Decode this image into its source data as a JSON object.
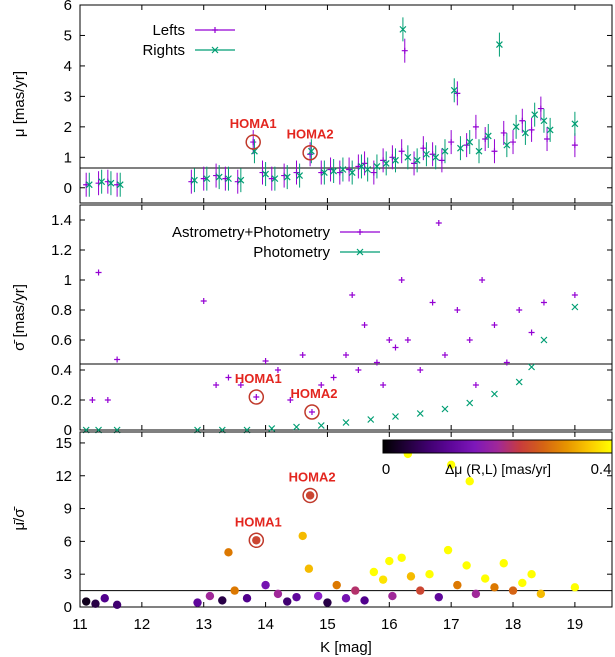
{
  "chart_data": [
    {
      "type": "scatter",
      "panel": "top",
      "ylabel": "μ [mas/yr]",
      "xlim": [
        11,
        19.6
      ],
      "ylim": [
        -0.5,
        6
      ],
      "yticks": [
        0,
        1,
        2,
        3,
        4,
        5,
        6
      ],
      "legend_position": "top-left",
      "series": [
        {
          "name": "Lefts",
          "color": "#9400d3",
          "marker": "plus",
          "x": [
            11.1,
            11.3,
            11.45,
            11.6,
            12.8,
            13.0,
            13.2,
            13.35,
            13.55,
            13.8,
            13.95,
            14.1,
            14.3,
            14.5,
            14.72,
            14.9,
            15.05,
            15.2,
            15.35,
            15.5,
            15.6,
            15.75,
            15.9,
            16.05,
            16.2,
            16.25,
            16.4,
            16.55,
            16.7,
            16.85,
            17.0,
            17.1,
            17.25,
            17.4,
            17.55,
            17.7,
            17.85,
            18.0,
            18.15,
            18.3,
            18.45,
            18.55,
            19.0
          ],
          "y": [
            0.1,
            0.15,
            0.2,
            0.1,
            0.2,
            0.3,
            0.4,
            0.3,
            0.2,
            1.5,
            0.5,
            0.3,
            0.4,
            0.5,
            1.1,
            0.5,
            0.6,
            0.5,
            0.6,
            0.7,
            0.8,
            0.5,
            0.9,
            1.0,
            1.2,
            4.5,
            0.8,
            1.3,
            1.1,
            0.9,
            1.5,
            3.1,
            1.4,
            2.0,
            1.6,
            1.2,
            1.8,
            1.5,
            2.2,
            1.9,
            2.6,
            1.6,
            1.4
          ]
        },
        {
          "name": "Rights",
          "color": "#009e73",
          "marker": "cross",
          "x": [
            11.15,
            11.35,
            11.5,
            11.65,
            12.85,
            13.05,
            13.25,
            13.4,
            13.6,
            13.82,
            14.0,
            14.15,
            14.35,
            14.55,
            14.74,
            14.95,
            15.1,
            15.25,
            15.4,
            15.55,
            15.65,
            15.8,
            15.95,
            16.1,
            16.22,
            16.3,
            16.45,
            16.6,
            16.75,
            16.9,
            17.05,
            17.15,
            17.3,
            17.45,
            17.6,
            17.78,
            17.9,
            18.05,
            18.2,
            18.35,
            18.5,
            18.6,
            19.0
          ],
          "y": [
            0.1,
            0.2,
            0.15,
            0.1,
            0.25,
            0.3,
            0.35,
            0.3,
            0.25,
            1.2,
            0.45,
            0.3,
            0.35,
            0.4,
            1.2,
            0.5,
            0.55,
            0.6,
            0.5,
            0.7,
            0.6,
            0.7,
            0.8,
            0.9,
            5.2,
            1.0,
            0.9,
            1.1,
            1.0,
            1.2,
            3.2,
            1.3,
            1.5,
            1.2,
            1.7,
            4.7,
            1.4,
            2.0,
            1.8,
            2.4,
            2.2,
            1.9,
            2.1
          ]
        }
      ],
      "hline": 0.65,
      "annotations": [
        {
          "text": "HOMA1",
          "x": 13.8,
          "y": 1.5
        },
        {
          "text": "HOMA2",
          "x": 14.72,
          "y": 1.15
        }
      ]
    },
    {
      "type": "scatter",
      "panel": "middle",
      "ylabel": "σ̄ [mas/yr]",
      "xlim": [
        11,
        19.6
      ],
      "ylim": [
        0,
        1.5
      ],
      "yticks": [
        0,
        0.2,
        0.4,
        0.6,
        0.8,
        1,
        1.2,
        1.4
      ],
      "legend_position": "top-left",
      "series": [
        {
          "name": "Astrometry+Photometry",
          "color": "#9400d3",
          "marker": "plus",
          "x": [
            11.2,
            11.3,
            11.45,
            11.6,
            13.0,
            13.2,
            13.4,
            13.6,
            13.85,
            14.0,
            14.2,
            14.4,
            14.6,
            14.75,
            14.9,
            15.1,
            15.3,
            15.5,
            15.6,
            15.8,
            15.9,
            16.1,
            16.3,
            16.5,
            16.7,
            16.9,
            17.1,
            17.3,
            17.5,
            17.7,
            17.9,
            18.1,
            18.3,
            18.5,
            19.0,
            16.2,
            16.8,
            17.4,
            15.4,
            16.0
          ],
          "y": [
            0.2,
            1.05,
            0.2,
            0.47,
            0.86,
            0.3,
            0.35,
            0.3,
            0.22,
            0.46,
            0.4,
            0.2,
            0.5,
            0.12,
            0.3,
            0.35,
            0.5,
            0.4,
            0.7,
            0.45,
            0.3,
            0.55,
            0.6,
            0.4,
            0.85,
            0.5,
            0.8,
            0.6,
            1.0,
            0.7,
            0.45,
            0.8,
            0.65,
            0.85,
            0.9,
            1.0,
            1.38,
            0.3,
            0.9,
            0.6
          ]
        },
        {
          "name": "Photometry",
          "color": "#009e73",
          "marker": "cross",
          "x": [
            11.1,
            11.3,
            11.6,
            12.9,
            13.3,
            13.7,
            14.1,
            14.5,
            14.9,
            15.3,
            15.7,
            16.1,
            16.5,
            16.9,
            17.3,
            17.7,
            18.1,
            18.3,
            18.5,
            19.0
          ],
          "y": [
            0.0,
            0.0,
            0.0,
            0.0,
            0.0,
            0.0,
            0.01,
            0.02,
            0.03,
            0.05,
            0.07,
            0.09,
            0.11,
            0.14,
            0.18,
            0.24,
            0.32,
            0.42,
            0.6,
            0.82
          ]
        }
      ],
      "hline": 0.44,
      "annotations": [
        {
          "text": "HOMA1",
          "x": 13.85,
          "y": 0.22
        },
        {
          "text": "HOMA2",
          "x": 14.75,
          "y": 0.12
        }
      ]
    },
    {
      "type": "scatter",
      "panel": "bottom",
      "ylabel": "μ̄/σ̄",
      "xlabel": "K [mag]",
      "xlim": [
        11,
        19.6
      ],
      "ylim": [
        0,
        16
      ],
      "xticks": [
        11,
        12,
        13,
        14,
        15,
        16,
        17,
        18,
        19
      ],
      "yticks": [
        0,
        3,
        6,
        9,
        12,
        15
      ],
      "colorbar": {
        "label": "Δμ (R,L) [mas/yr]",
        "min": 0,
        "max": 0.4,
        "ticks": [
          0,
          0.4
        ]
      },
      "points": {
        "x": [
          11.1,
          11.25,
          11.4,
          11.6,
          12.9,
          13.1,
          13.3,
          13.5,
          13.7,
          13.85,
          14.0,
          14.2,
          14.35,
          14.5,
          14.7,
          14.72,
          14.85,
          15.0,
          15.15,
          15.3,
          15.45,
          15.6,
          15.75,
          15.9,
          16.05,
          16.2,
          16.35,
          16.5,
          16.65,
          16.8,
          16.95,
          17.1,
          17.25,
          17.4,
          17.55,
          17.7,
          17.85,
          18.0,
          18.15,
          18.3,
          18.45,
          19.0,
          13.4,
          14.6,
          16.0,
          16.3,
          17.0,
          17.3
        ],
        "y": [
          0.5,
          0.3,
          0.8,
          0.2,
          0.4,
          1.0,
          0.6,
          1.5,
          0.8,
          6.1,
          2.0,
          1.2,
          0.5,
          0.9,
          3.5,
          10.2,
          1.0,
          0.4,
          2.0,
          0.8,
          1.5,
          0.6,
          3.2,
          2.5,
          1.0,
          4.5,
          2.8,
          1.5,
          3.0,
          0.9,
          5.2,
          2.0,
          3.8,
          1.2,
          2.6,
          1.8,
          4.0,
          1.5,
          2.2,
          3.0,
          1.2,
          1.8,
          5.0,
          6.5,
          4.2,
          14.0,
          13.0,
          11.5
        ],
        "dmu": [
          0.02,
          0.05,
          0.1,
          0.08,
          0.12,
          0.2,
          0.05,
          0.3,
          0.1,
          0.25,
          0.15,
          0.2,
          0.08,
          0.12,
          0.35,
          0.25,
          0.18,
          0.05,
          0.3,
          0.15,
          0.22,
          0.1,
          0.4,
          0.38,
          0.2,
          0.4,
          0.35,
          0.25,
          0.4,
          0.12,
          0.4,
          0.3,
          0.4,
          0.2,
          0.4,
          0.3,
          0.4,
          0.28,
          0.4,
          0.4,
          0.35,
          0.4,
          0.3,
          0.35,
          0.4,
          0.4,
          0.4,
          0.4
        ]
      },
      "hline": 1.5,
      "annotations": [
        {
          "text": "HOMA1",
          "x": 13.85,
          "y": 6.1
        },
        {
          "text": "HOMA2",
          "x": 14.72,
          "y": 10.2
        }
      ]
    }
  ]
}
